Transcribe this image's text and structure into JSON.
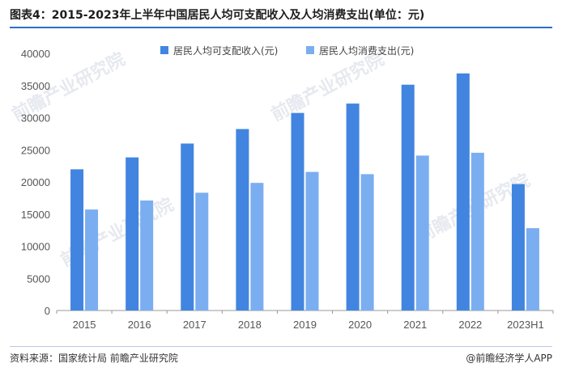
{
  "header": {
    "title": "图表4：2015-2023年上半年中国居民人均可支配收入及人均消费支出(单位：元)"
  },
  "footer": {
    "source": "资料来源：国家统计局 前瞻产业研究院",
    "brand": "@前瞻经济学人APP"
  },
  "watermark": "前瞻产业研究院",
  "colors": {
    "income": "#4285e0",
    "consumption": "#7baef0",
    "axis": "#999999"
  },
  "chart_data": {
    "type": "bar",
    "categories": [
      "2015",
      "2016",
      "2017",
      "2018",
      "2019",
      "2020",
      "2021",
      "2022",
      "2023H1"
    ],
    "series": [
      {
        "name": "居民人均可支配收入(元)",
        "values": [
          21966,
          23821,
          25974,
          28228,
          30733,
          32189,
          35128,
          36883,
          19672
        ]
      },
      {
        "name": "居民人均消费支出(元)",
        "values": [
          15712,
          17111,
          18322,
          19853,
          21559,
          21210,
          24100,
          24538,
          12811
        ]
      }
    ],
    "ylim": [
      0,
      40000
    ],
    "yticks": [
      0,
      5000,
      10000,
      15000,
      20000,
      25000,
      30000,
      35000,
      40000
    ],
    "legend_position": "top",
    "grid": false,
    "xlabel": "",
    "ylabel": ""
  }
}
